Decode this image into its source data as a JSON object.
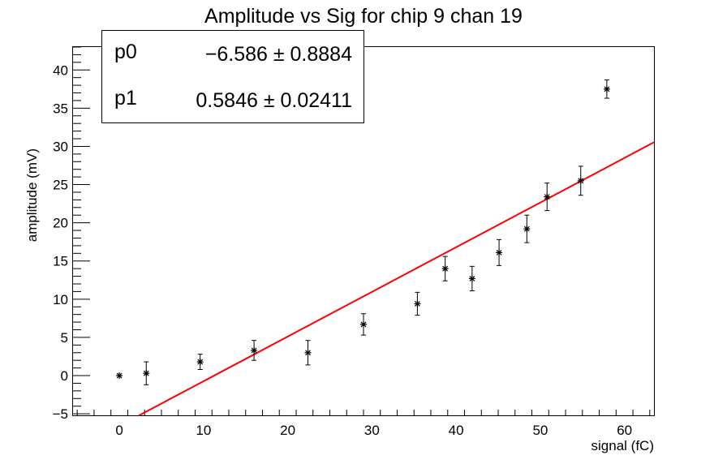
{
  "chart_data": {
    "type": "scatter",
    "title": "Amplitude vs Sig for chip 9 chan 19",
    "xlabel": "signal (fC)",
    "ylabel": "amplitude (mV)",
    "xlim": [
      -5.5,
      63.5
    ],
    "ylim": [
      -5.2,
      43
    ],
    "x_ticks": [
      0,
      10,
      20,
      30,
      40,
      50,
      60
    ],
    "y_ticks": [
      -5,
      0,
      5,
      10,
      15,
      20,
      25,
      30,
      35,
      40
    ],
    "grid": false,
    "series": [
      {
        "x": [
          0,
          3.2,
          9.6,
          16.0,
          22.4,
          29.0,
          35.4,
          38.7,
          41.9,
          45.1,
          48.4,
          50.8,
          54.8,
          57.9
        ],
        "y": [
          0.0,
          0.3,
          1.8,
          3.3,
          3.0,
          6.7,
          9.4,
          14.0,
          12.7,
          16.1,
          19.2,
          23.4,
          25.5,
          37.5
        ],
        "yerr": [
          0.0,
          1.5,
          1.0,
          1.3,
          1.6,
          1.4,
          1.5,
          1.6,
          1.6,
          1.7,
          1.8,
          1.8,
          1.9,
          1.2
        ],
        "color": "#000000",
        "marker": "star"
      }
    ],
    "fit": {
      "type": "linear",
      "p0": -6.586,
      "p1": 0.5846,
      "x_range": [
        2.3,
        63.5
      ],
      "color": "#ff0000"
    },
    "stats_box": {
      "rows": [
        {
          "name": "p0",
          "value": "−6.586 ± 0.8884"
        },
        {
          "name": "p1",
          "value": "0.5846 ± 0.02411"
        }
      ],
      "placement": "top-left"
    }
  }
}
